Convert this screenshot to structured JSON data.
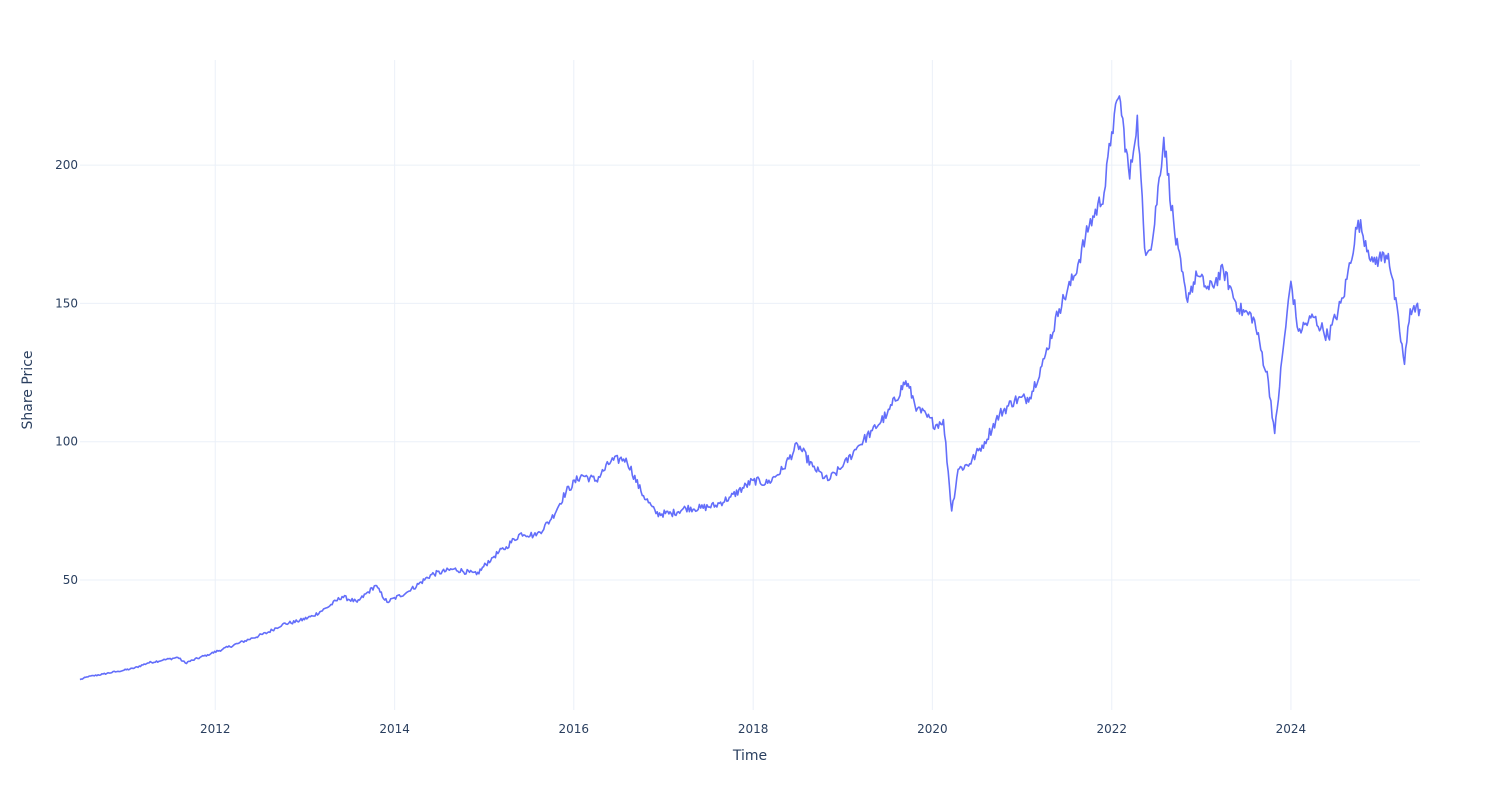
{
  "chart_data": {
    "type": "line",
    "title": "",
    "xlabel": "Time",
    "ylabel": "Share Price",
    "x_ticks": [
      "2012",
      "2014",
      "2016",
      "2018",
      "2020",
      "2022",
      "2024"
    ],
    "y_ticks": [
      "50",
      "100",
      "150",
      "200"
    ],
    "xlim": [
      "2010-06-29",
      "2025-06-10"
    ],
    "ylim": [
      3,
      238
    ],
    "grid": true,
    "colors": {
      "line": "#636efa",
      "grid": "#ebf0f8",
      "text": "#2a3f5f"
    },
    "series": [
      {
        "x": [
          "2010-06-29",
          "2010-08-01",
          "2010-10-01",
          "2010-12-01",
          "2011-02-01",
          "2011-04-01",
          "2011-06-01",
          "2011-08-01",
          "2011-09-01",
          "2011-10-01",
          "2011-12-01",
          "2012-02-01",
          "2012-04-01",
          "2012-06-01",
          "2012-08-01",
          "2012-10-01",
          "2012-12-01",
          "2013-02-01",
          "2013-04-01",
          "2013-06-01",
          "2013-08-01",
          "2013-10-15",
          "2013-12-01",
          "2014-03-01",
          "2014-06-01",
          "2014-09-01",
          "2014-12-01",
          "2015-02-01",
          "2015-04-01",
          "2015-06-01",
          "2015-08-01",
          "2015-10-01",
          "2015-12-01",
          "2016-02-01",
          "2016-04-01",
          "2016-06-01",
          "2016-08-01",
          "2016-10-01",
          "2016-12-01",
          "2017-02-01",
          "2017-04-01",
          "2017-06-01",
          "2017-08-01",
          "2017-10-01",
          "2018-01-01",
          "2018-03-01",
          "2018-05-01",
          "2018-07-01",
          "2018-09-01",
          "2018-11-01",
          "2019-01-01",
          "2019-03-01",
          "2019-05-01",
          "2019-07-01",
          "2019-09-15",
          "2019-11-01",
          "2020-01-15",
          "2020-02-15",
          "2020-03-20",
          "2020-04-15",
          "2020-06-01",
          "2020-08-01",
          "2020-10-01",
          "2020-12-01",
          "2021-02-01",
          "2021-04-01",
          "2021-06-01",
          "2021-08-01",
          "2021-10-01",
          "2021-12-01",
          "2022-01-01",
          "2022-02-01",
          "2022-03-15",
          "2022-04-15",
          "2022-05-15",
          "2022-06-15",
          "2022-08-01",
          "2022-09-15",
          "2022-11-01",
          "2022-12-15",
          "2023-02-01",
          "2023-04-01",
          "2023-06-01",
          "2023-08-01",
          "2023-10-01",
          "2023-10-27",
          "2023-12-01",
          "2024-01-01",
          "2024-02-01",
          "2024-04-01",
          "2024-06-01",
          "2024-08-01",
          "2024-10-01",
          "2024-12-01",
          "2025-02-01",
          "2025-04-08",
          "2025-05-01",
          "2025-06-10"
        ],
        "y": [
          14,
          15,
          16,
          17,
          18,
          20,
          21,
          22,
          20,
          21,
          23,
          25,
          27,
          29,
          31,
          34,
          35,
          37,
          40,
          44,
          42,
          48,
          42,
          46,
          52,
          54,
          52,
          58,
          62,
          67,
          66,
          72,
          82,
          88,
          86,
          93,
          94,
          82,
          74,
          74,
          76,
          76,
          77,
          80,
          86,
          85,
          90,
          99,
          91,
          86,
          91,
          98,
          104,
          110,
          122,
          112,
          106,
          108,
          75,
          90,
          92,
          100,
          110,
          115,
          116,
          130,
          148,
          160,
          178,
          190,
          212,
          225,
          195,
          218,
          170,
          172,
          210,
          175,
          152,
          160,
          155,
          162,
          148,
          145,
          122,
          103,
          134,
          158,
          140,
          145,
          138,
          152,
          180,
          165,
          168,
          128,
          148,
          148
        ]
      }
    ]
  }
}
